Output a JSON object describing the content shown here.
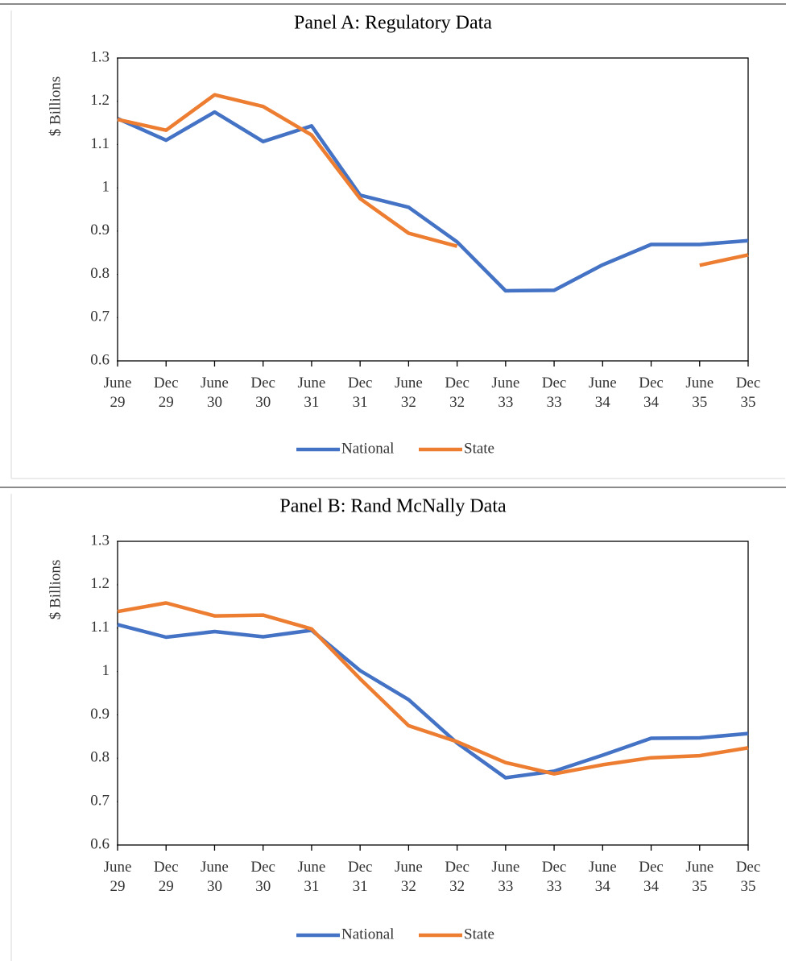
{
  "chart_data": [
    {
      "type": "line",
      "title": "Panel A: Regulatory Data",
      "ylabel": "$ Billions",
      "categories": [
        "June 29",
        "Dec 29",
        "June 30",
        "Dec 30",
        "June 31",
        "Dec 31",
        "June 32",
        "Dec 32",
        "June 33",
        "Dec 33",
        "June 34",
        "Dec 34",
        "June 35",
        "Dec 35"
      ],
      "series": [
        {
          "name": "National",
          "color": "#4472c4",
          "values": [
            1.16,
            1.11,
            1.175,
            1.107,
            1.143,
            0.983,
            0.955,
            0.875,
            0.762,
            0.763,
            0.822,
            0.869,
            0.869,
            0.878
          ]
        },
        {
          "name": "State",
          "color": "#ed7d31",
          "values": [
            1.158,
            1.133,
            1.215,
            1.188,
            1.122,
            0.975,
            0.895,
            0.865,
            null,
            null,
            null,
            null,
            0.821,
            0.845
          ]
        }
      ],
      "ylim": [
        0.6,
        1.3
      ],
      "yticks": [
        0.6,
        0.7,
        0.8,
        0.9,
        1,
        1.1,
        1.2,
        1.3
      ],
      "legend": "bottom"
    },
    {
      "type": "line",
      "title": "Panel B: Rand McNally Data",
      "ylabel": "$ Billions",
      "categories": [
        "June 29",
        "Dec 29",
        "June 30",
        "Dec 30",
        "June 31",
        "Dec 31",
        "June 32",
        "Dec 32",
        "June 33",
        "Dec 33",
        "June 34",
        "Dec 34",
        "June 35",
        "Dec 35"
      ],
      "series": [
        {
          "name": "National",
          "color": "#4472c4",
          "values": [
            1.108,
            1.079,
            1.092,
            1.08,
            1.095,
            1.002,
            0.935,
            0.835,
            0.755,
            0.77,
            0.807,
            0.846,
            0.847,
            0.857
          ]
        },
        {
          "name": "State",
          "color": "#ed7d31",
          "values": [
            1.138,
            1.158,
            1.128,
            1.13,
            1.098,
            0.983,
            0.875,
            0.838,
            0.79,
            0.764,
            0.785,
            0.801,
            0.806,
            0.824
          ]
        }
      ],
      "ylim": [
        0.6,
        1.3
      ],
      "yticks": [
        0.6,
        0.7,
        0.8,
        0.9,
        1,
        1.1,
        1.2,
        1.3
      ],
      "legend": "bottom"
    }
  ]
}
